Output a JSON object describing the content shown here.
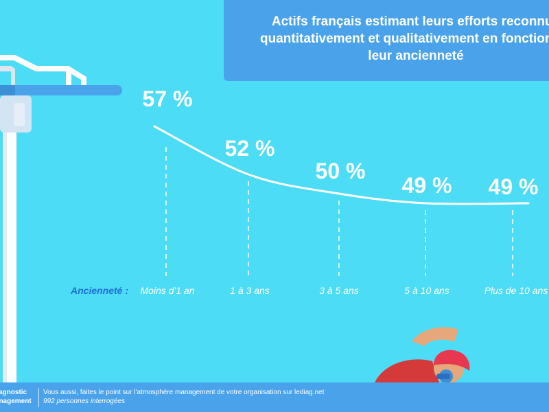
{
  "title": "Actifs français estimant leurs efforts reconnus\nquantitativement et qualitativement en fonction de\nleur ancienneté",
  "axis_label": "Ancienneté :",
  "colors": {
    "background": "#4cdcf5",
    "panel": "#4aa3ea",
    "text": "#ffffff",
    "axis_label": "#1d6fd6"
  },
  "chart_data": {
    "type": "line",
    "xlabel": "Ancienneté :",
    "categories": [
      "Moins d'1 an",
      "1 à 3 ans",
      "3 à 5 ans",
      "5 à 10 ans",
      "Plus de 10 ans"
    ],
    "values": [
      57,
      52,
      50,
      49,
      49
    ],
    "value_labels": [
      "57 %",
      "52 %",
      "50 %",
      "49 %",
      "49 %"
    ],
    "unit": "%",
    "grid": false
  },
  "footer": {
    "brand_line1": "Diagnostic",
    "brand_line2": "management",
    "cta": "Vous aussi, faites le point sur l'atmosphère management de votre organisation sur lediag.net",
    "note": "992 personnes interrogées"
  }
}
